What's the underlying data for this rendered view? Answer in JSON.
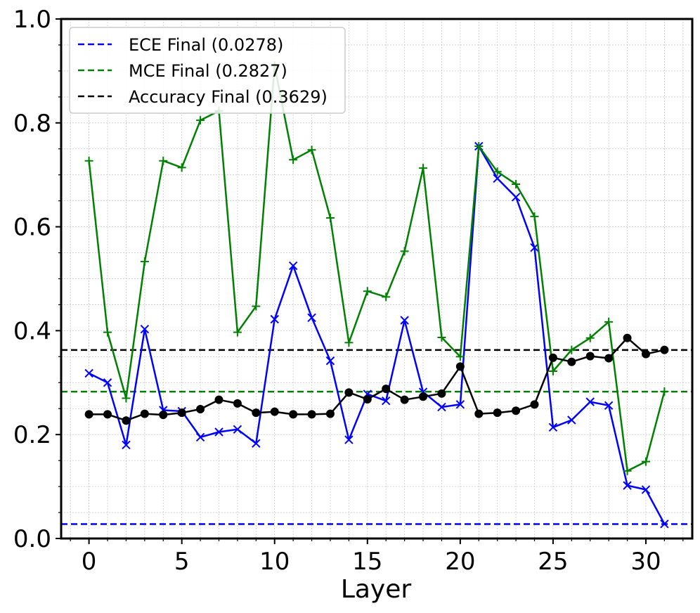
{
  "chart_data": {
    "type": "line",
    "xlabel": "Layer",
    "ylabel": "",
    "xlim": [
      -1.5,
      32.5
    ],
    "ylim": [
      0.0,
      1.0
    ],
    "xticks": [
      0,
      5,
      10,
      15,
      20,
      25,
      30
    ],
    "yticks": [
      0.0,
      0.2,
      0.4,
      0.6,
      0.8,
      1.0
    ],
    "ytick_labels": [
      "0.0",
      "0.2",
      "0.4",
      "0.6",
      "0.8",
      "1.0"
    ],
    "grid": true,
    "legend_position": "top-left",
    "x": [
      0,
      1,
      2,
      3,
      4,
      5,
      6,
      7,
      8,
      9,
      10,
      11,
      12,
      13,
      14,
      15,
      16,
      17,
      18,
      19,
      20,
      21,
      22,
      23,
      24,
      25,
      26,
      27,
      28,
      29,
      30,
      31
    ],
    "series": [
      {
        "key": "ece",
        "color": "#0000ff",
        "marker": "x",
        "values": [
          0.318,
          0.3,
          0.18,
          0.403,
          0.247,
          0.245,
          0.195,
          0.205,
          0.21,
          0.183,
          0.422,
          0.525,
          0.425,
          0.342,
          0.19,
          0.278,
          0.265,
          0.42,
          0.282,
          0.253,
          0.258,
          0.755,
          0.693,
          0.657,
          0.56,
          0.214,
          0.228,
          0.263,
          0.256,
          0.102,
          0.094,
          0.028
        ]
      },
      {
        "key": "mce",
        "color": "#008000",
        "marker": "+",
        "values": [
          0.727,
          0.397,
          0.27,
          0.533,
          0.727,
          0.714,
          0.805,
          0.823,
          0.397,
          0.447,
          0.91,
          0.729,
          0.748,
          0.617,
          0.377,
          0.476,
          0.465,
          0.553,
          0.713,
          0.387,
          0.35,
          0.755,
          0.706,
          0.682,
          0.62,
          0.322,
          0.363,
          0.386,
          0.417,
          0.13,
          0.148,
          0.283
        ]
      },
      {
        "key": "accuracy",
        "color": "#000000",
        "marker": "o",
        "values": [
          0.239,
          0.239,
          0.227,
          0.24,
          0.238,
          0.242,
          0.249,
          0.267,
          0.26,
          0.242,
          0.244,
          0.239,
          0.239,
          0.24,
          0.281,
          0.268,
          0.288,
          0.267,
          0.273,
          0.279,
          0.331,
          0.24,
          0.242,
          0.246,
          0.258,
          0.348,
          0.34,
          0.351,
          0.347,
          0.386,
          0.355,
          0.363
        ]
      }
    ],
    "hlines": [
      {
        "key": "ece_final",
        "label": "ECE Final (0.0278)",
        "value": 0.0278,
        "color": "#0000ff",
        "style": "dashed"
      },
      {
        "key": "mce_final",
        "label": "MCE Final (0.2827)",
        "value": 0.2827,
        "color": "#008000",
        "style": "dashed"
      },
      {
        "key": "acc_final",
        "label": "Accuracy Final (0.3629)",
        "value": 0.3629,
        "color": "#000000",
        "style": "dashed"
      }
    ]
  }
}
